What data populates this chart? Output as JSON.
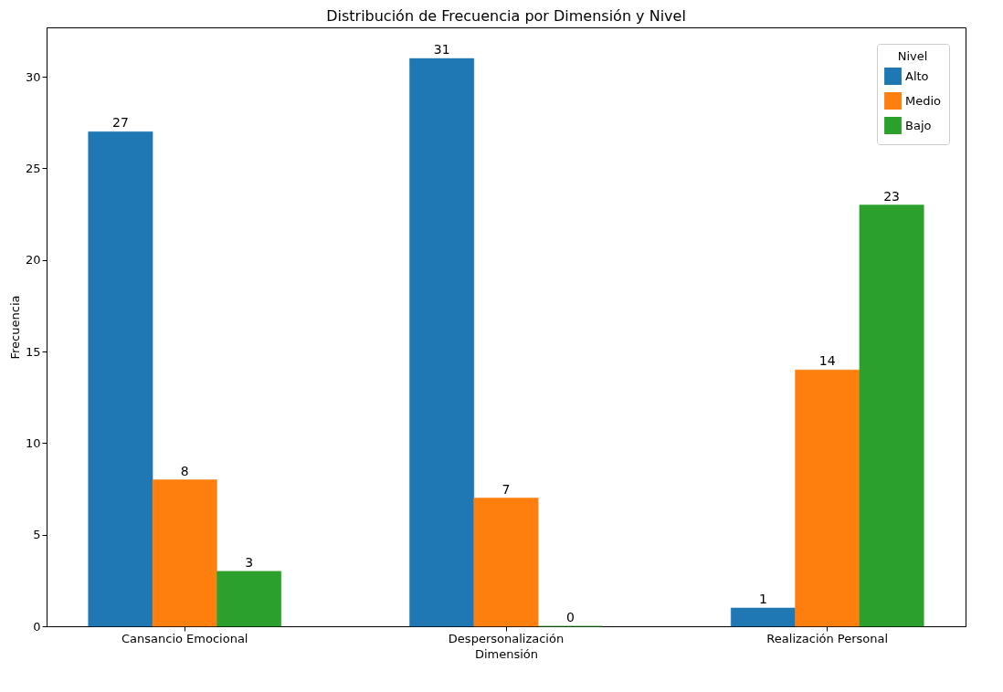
{
  "chart_data": {
    "type": "bar",
    "title": "Distribución de Frecuencia por Dimensión y Nivel",
    "xlabel": "Dimensión",
    "ylabel": "Frecuencia",
    "legend_title": "Nivel",
    "categories": [
      "Cansancio Emocional",
      "Despersonalización",
      "Realización Personal"
    ],
    "series": [
      {
        "name": "Alto",
        "color": "#1f77b4",
        "values": [
          27,
          31,
          1
        ]
      },
      {
        "name": "Medio",
        "color": "#ff7f0e",
        "values": [
          8,
          7,
          14
        ]
      },
      {
        "name": "Bajo",
        "color": "#2ca02c",
        "values": [
          3,
          0,
          23
        ]
      }
    ],
    "ylim": [
      0,
      32.7
    ],
    "yticks": [
      0,
      5,
      10,
      15,
      20,
      25,
      30
    ],
    "grid": false,
    "legend": "top right",
    "data_labels": true
  }
}
